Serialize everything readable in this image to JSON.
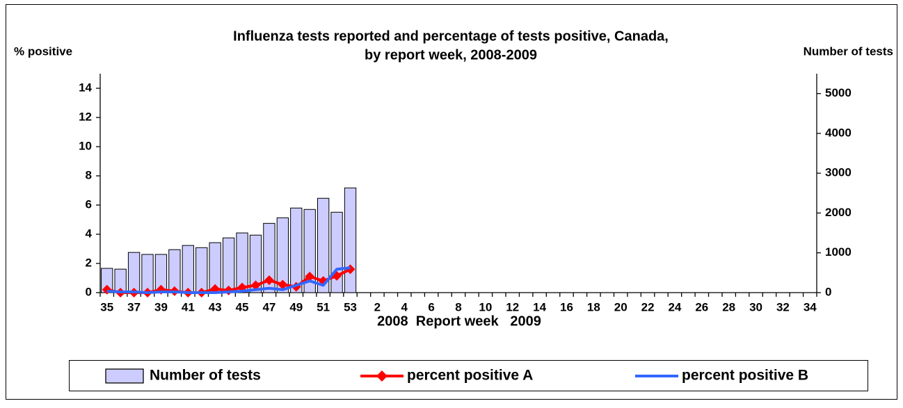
{
  "chart_data": {
    "type": "bar",
    "title": [
      "Influenza tests reported and percentage of tests positive, Canada,",
      "by report week, 2008-2009"
    ],
    "y_label": "% positive",
    "y2_label": "Number of tests",
    "x_label": "2008  Report week   2009",
    "categories": [
      "35",
      null,
      "37",
      null,
      "39",
      null,
      "41",
      null,
      "43",
      null,
      "45",
      null,
      "47",
      null,
      "49",
      null,
      "51",
      null,
      "53",
      null,
      "2",
      null,
      "4",
      null,
      "6",
      null,
      "8",
      null,
      "10",
      null,
      "12",
      null,
      "14",
      null,
      "16",
      null,
      "18",
      null,
      "20",
      null,
      "22",
      null,
      "24",
      null,
      "26",
      null,
      "28",
      null,
      "30",
      null,
      "32",
      null,
      "34"
    ],
    "series": [
      {
        "name": "Number of tests",
        "type": "bar",
        "axis": "y2",
        "color": "#ccccff",
        "values": [
          610,
          590,
          1010,
          960,
          960,
          1080,
          1185,
          1130,
          1255,
          1375,
          1500,
          1445,
          1740,
          1880,
          2125,
          2090,
          2370,
          2020,
          2630,
          null,
          null,
          null,
          null,
          null,
          null,
          null,
          null,
          null,
          null,
          null,
          null,
          null,
          null,
          null,
          null,
          null,
          null,
          null,
          null,
          null,
          null,
          null,
          null,
          null,
          null,
          null,
          null,
          null,
          null,
          null,
          null,
          null,
          null
        ]
      },
      {
        "name": "percent positive A",
        "type": "line",
        "marker": "diamond",
        "color": "#ff0000",
        "values": [
          0.2,
          0,
          0,
          0,
          0.2,
          0.1,
          0,
          0,
          0.25,
          0.15,
          0.35,
          0.5,
          0.85,
          0.55,
          0.4,
          1.1,
          0.8,
          1.15,
          1.6,
          null,
          null,
          null,
          null,
          null,
          null,
          null,
          null,
          null,
          null,
          null,
          null,
          null,
          null,
          null,
          null,
          null,
          null,
          null,
          null,
          null,
          null,
          null,
          null,
          null,
          null,
          null,
          null,
          null,
          null,
          null,
          null,
          null,
          null
        ]
      },
      {
        "name": "percent positive B",
        "type": "line",
        "color": "#3366ff",
        "values": [
          0.1,
          0.05,
          0.05,
          0,
          0.05,
          0.05,
          0,
          0,
          0,
          0.05,
          0.1,
          0.2,
          0.3,
          0.2,
          0.5,
          0.8,
          0.5,
          1.6,
          1.7,
          null,
          null,
          null,
          null,
          null,
          null,
          null,
          null,
          null,
          null,
          null,
          null,
          null,
          null,
          null,
          null,
          null,
          null,
          null,
          null,
          null,
          null,
          null,
          null,
          null,
          null,
          null,
          null,
          null,
          null,
          null,
          null,
          null,
          null
        ]
      }
    ],
    "ylim": [
      0,
      15
    ],
    "yticks": [
      0,
      2,
      4,
      6,
      8,
      10,
      12,
      14
    ],
    "y2lim": [
      0,
      5500
    ],
    "y2ticks": [
      0,
      1000,
      2000,
      3000,
      4000,
      5000
    ],
    "legend": "bottom"
  }
}
